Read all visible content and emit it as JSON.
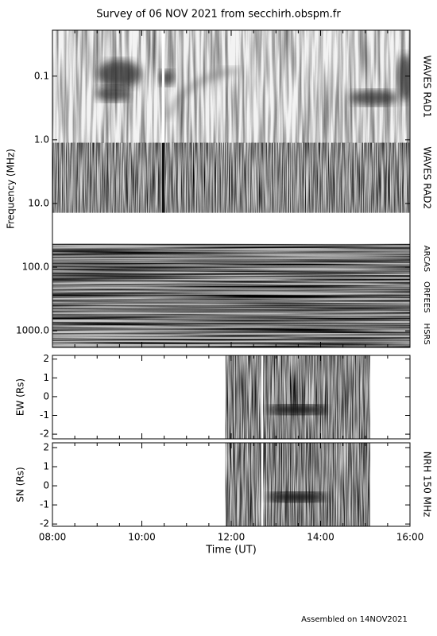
{
  "chart_data": {
    "type": "spectrogram",
    "title": "Survey of 06 NOV 2021 from secchirh.obspm.fr",
    "xlabel": "Time (UT)",
    "xlim": [
      8,
      16
    ],
    "xticks": [
      {
        "value": 8,
        "label": "08:00"
      },
      {
        "value": 10,
        "label": "10:00"
      },
      {
        "value": 12,
        "label": "12:00"
      },
      {
        "value": 14,
        "label": "14:00"
      },
      {
        "value": 16,
        "label": "16:00"
      }
    ],
    "xminorticks": [
      8.5,
      9,
      9.5,
      10.5,
      11,
      11.5,
      12.5,
      13,
      13.5,
      14.5,
      15,
      15.5
    ],
    "instrument_label": "NRH 150 MHz",
    "footer": "Assembled on 14NOV2021",
    "panels": [
      {
        "ylabel": "Frequency (MHz)",
        "log": true,
        "ylim": [
          1820,
          0.019
        ],
        "yticks": [
          0.1,
          {
            "value": 1,
            "label": "1.0"
          },
          {
            "value": 10,
            "label": "10.0"
          },
          {
            "value": 100,
            "label": "100.0"
          },
          {
            "value": 1000,
            "label": "1000.0"
          }
        ],
        "bands": [
          {
            "name": "WAVES RAD1",
            "range": [
              0.019,
              1.12
            ]
          },
          {
            "name": "WAVES RAD2",
            "range": [
              1.12,
              14
            ]
          },
          {
            "name": "ARCAS",
            "range": [
              43,
              126
            ]
          },
          {
            "name": "ORFEES",
            "range": [
              126,
              690
            ]
          },
          {
            "name": "HSRS",
            "range": [
              690,
              1820
            ]
          }
        ]
      },
      {
        "ylabel": "EW (Rs)",
        "log": false,
        "ylim": [
          -2.25,
          2.2
        ],
        "yticks": [
          -2,
          -1,
          0,
          1,
          2
        ]
      },
      {
        "ylabel": "SN (Rs)",
        "log": false,
        "ylim": [
          -2.12,
          2.25
        ],
        "yticks": [
          -2,
          -1,
          0,
          1,
          2
        ]
      }
    ]
  }
}
